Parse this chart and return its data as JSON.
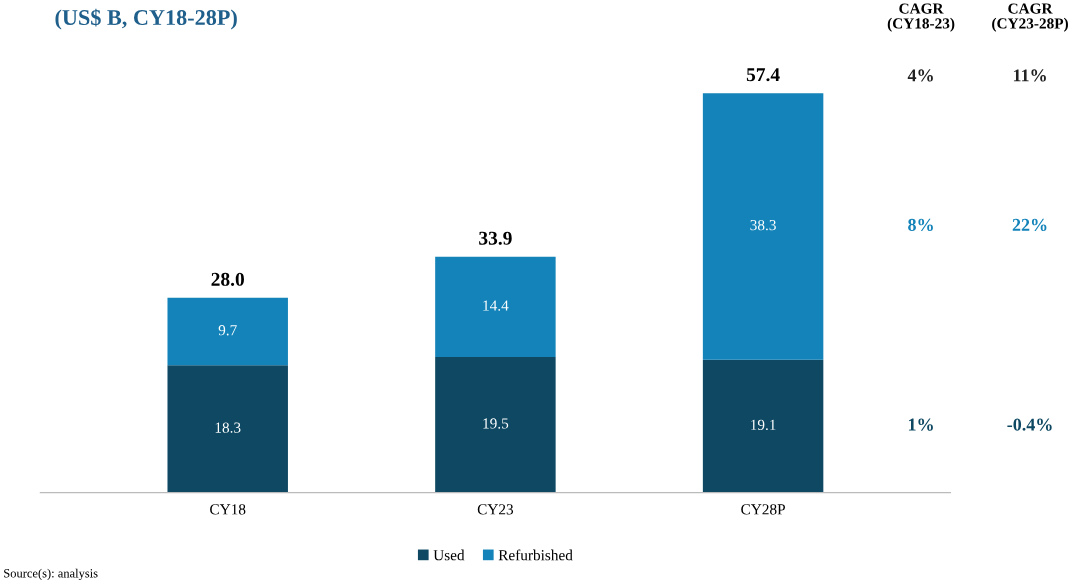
{
  "chart_data": {
    "type": "bar",
    "title": "(US$ B, CY18-28P)",
    "categories": [
      "CY18",
      "CY23",
      "CY28P"
    ],
    "stacked": true,
    "series": [
      {
        "name": "Used",
        "color": "#0e4862",
        "values": [
          18.3,
          19.5,
          19.1
        ]
      },
      {
        "name": "Refurbished",
        "color": "#1383b9",
        "values": [
          9.7,
          14.4,
          38.3
        ]
      }
    ],
    "data_labels": true,
    "totals": [
      "28.0",
      "33.9",
      "57.4"
    ],
    "legend": "bottom",
    "grid": false,
    "annotations": [
      "CAGR\n(CY18-23)",
      "CAGR\n(CY23-28P)",
      "4%",
      "11%",
      "8%",
      "22%",
      "1%",
      "-0.4%",
      "Source(s): analysis"
    ]
  }
}
